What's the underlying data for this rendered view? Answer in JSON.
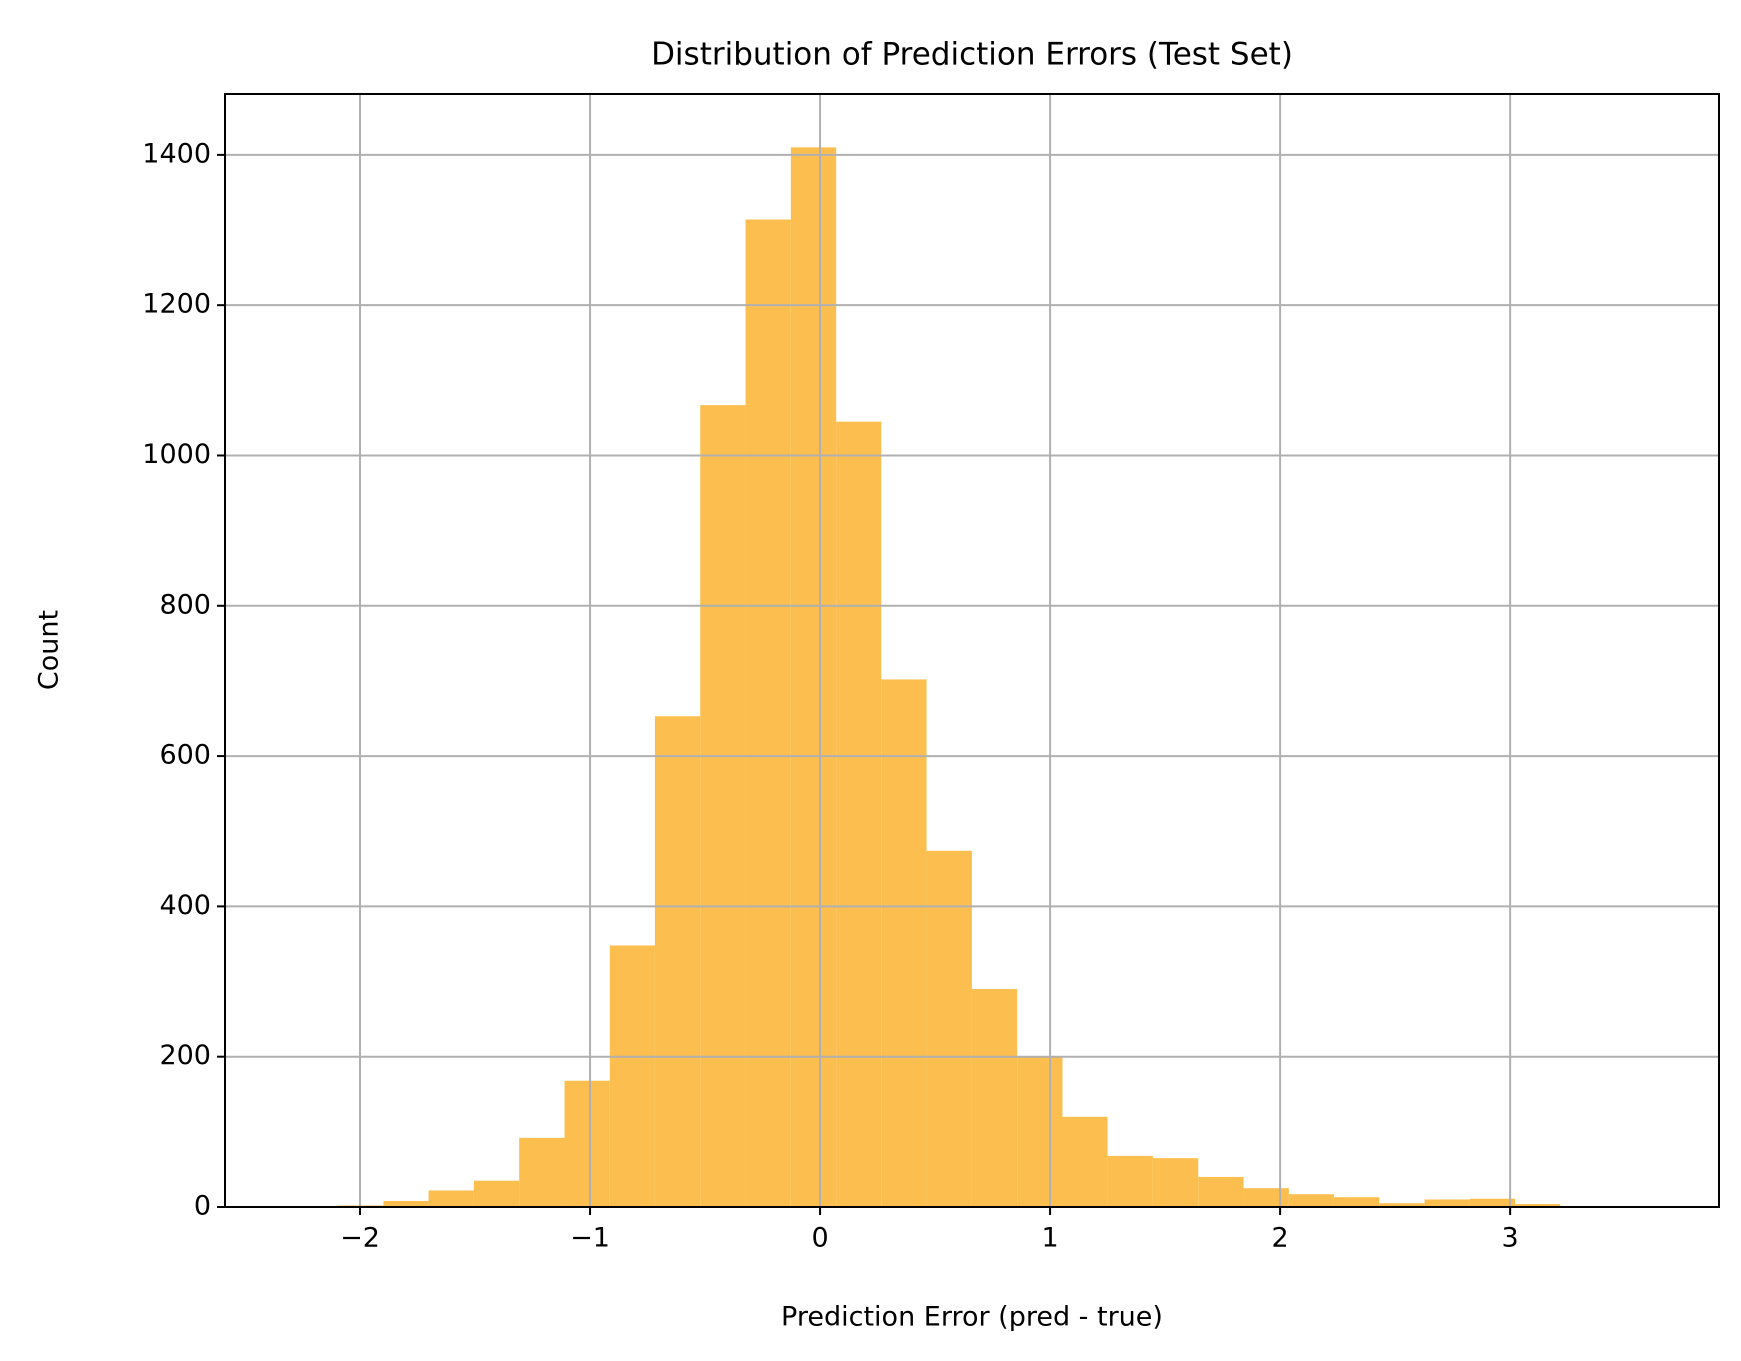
{
  "chart_data": {
    "type": "histogram",
    "title": "Distribution of Prediction Errors (Test Set)",
    "x_label": "Prediction Error (pred - true)",
    "y_label": "Count",
    "bins": [
      -2.292,
      -2.095,
      -1.898,
      -1.702,
      -1.505,
      -1.308,
      -1.111,
      -0.914,
      -0.718,
      -0.521,
      -0.324,
      -0.127,
      0.07,
      0.266,
      0.463,
      0.66,
      0.857,
      1.054,
      1.25,
      1.447,
      1.644,
      1.841,
      2.038,
      2.234,
      2.431,
      2.628,
      2.825,
      3.022,
      3.218,
      3.415,
      3.612
    ],
    "values": [
      1,
      2,
      8,
      22,
      35,
      92,
      168,
      348,
      653,
      1067,
      1314,
      1410,
      1045,
      702,
      474,
      290,
      200,
      120,
      68,
      65,
      40,
      25,
      17,
      13,
      5,
      10,
      11,
      4,
      1,
      1
    ],
    "color": "#fcbf4f",
    "xlim": [
      -2.587,
      3.908
    ],
    "ylim": [
      0,
      1481
    ],
    "xticks": [
      {
        "value": -2,
        "label": "−2"
      },
      {
        "value": -1,
        "label": "−1"
      },
      0,
      1,
      2,
      3
    ],
    "yticks": [
      0,
      200,
      400,
      600,
      800,
      1000,
      1200,
      1400
    ],
    "grid": true
  }
}
